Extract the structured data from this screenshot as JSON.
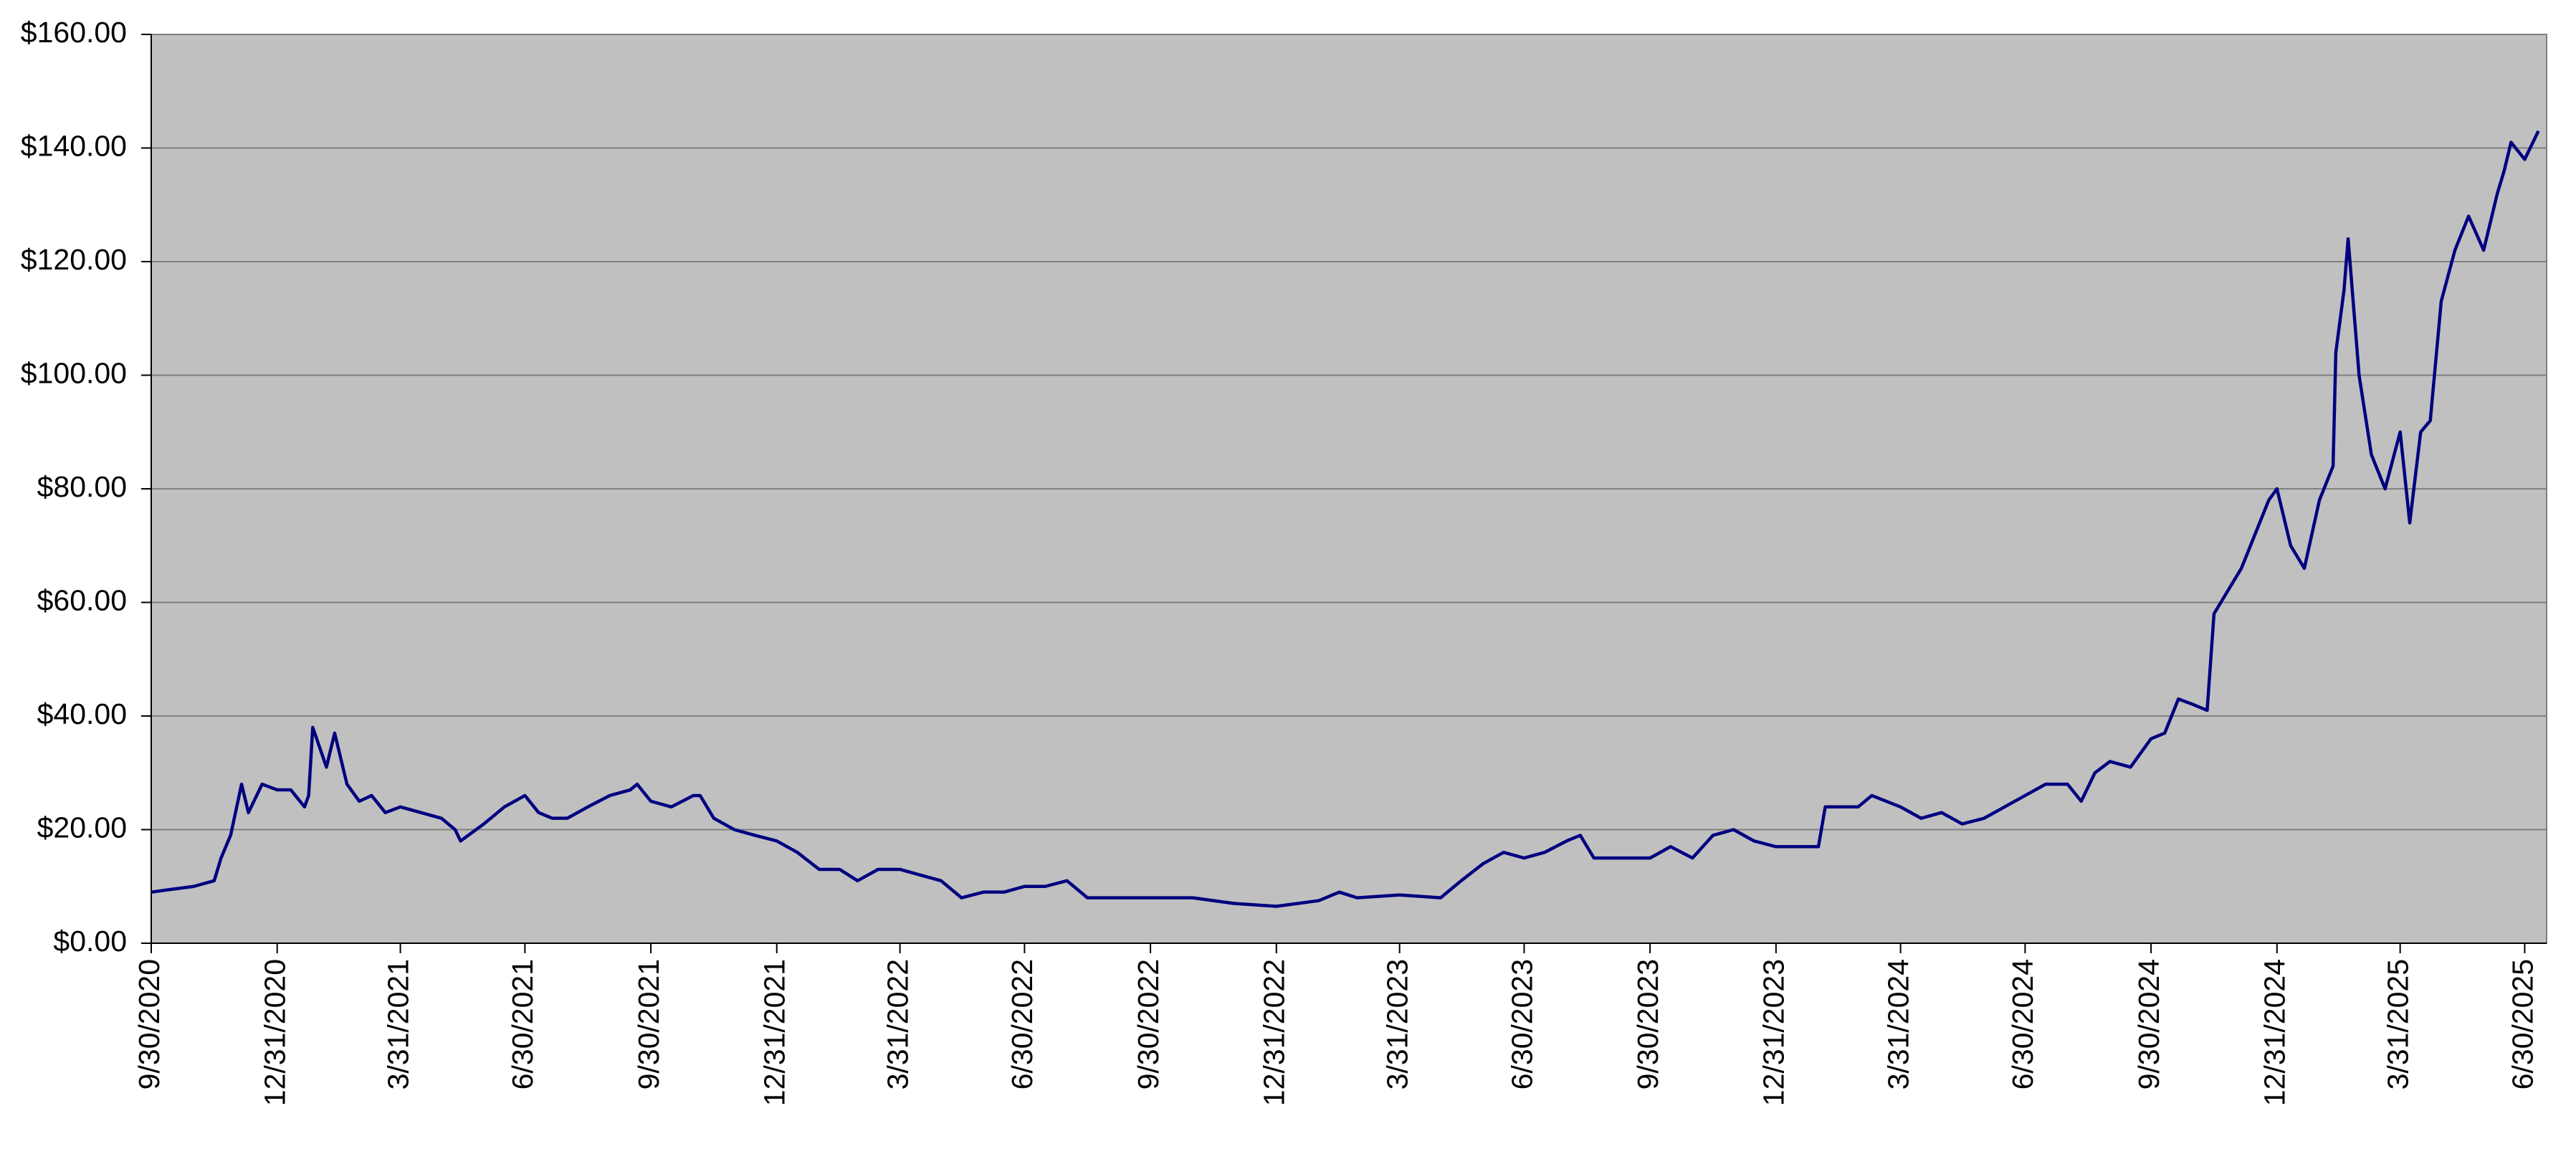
{
  "chart_data": {
    "type": "line",
    "x": [
      "9/30/2020",
      "10/15/2020",
      "10/31/2020",
      "11/15/2020",
      "11/20/2020",
      "11/27/2020",
      "12/5/2020",
      "12/10/2020",
      "12/20/2020",
      "12/31/2020",
      "1/10/2021",
      "1/20/2021",
      "1/23/2021",
      "1/26/2021",
      "2/5/2021",
      "2/11/2021",
      "2/20/2021",
      "3/1/2021",
      "3/10/2021",
      "3/20/2021",
      "3/31/2021",
      "4/15/2021",
      "4/30/2021",
      "5/10/2021",
      "5/14/2021",
      "5/31/2021",
      "6/15/2021",
      "6/30/2021",
      "7/10/2021",
      "7/20/2021",
      "7/31/2021",
      "8/15/2021",
      "8/31/2021",
      "9/15/2021",
      "9/20/2021",
      "9/30/2021",
      "10/15/2021",
      "10/31/2021",
      "11/5/2021",
      "11/15/2021",
      "11/30/2021",
      "12/15/2021",
      "12/31/2021",
      "1/15/2022",
      "1/31/2022",
      "2/15/2022",
      "2/28/2022",
      "3/15/2022",
      "3/31/2022",
      "4/15/2022",
      "4/30/2022",
      "5/15/2022",
      "5/31/2022",
      "6/15/2022",
      "6/30/2022",
      "7/15/2022",
      "7/31/2022",
      "8/15/2022",
      "8/31/2022",
      "9/30/2022",
      "10/31/2022",
      "11/30/2022",
      "12/31/2022",
      "1/31/2023",
      "2/15/2023",
      "2/28/2023",
      "3/31/2023",
      "4/30/2023",
      "5/15/2023",
      "5/31/2023",
      "6/15/2023",
      "6/30/2023",
      "7/15/2023",
      "7/31/2023",
      "8/10/2023",
      "8/20/2023",
      "8/31/2023",
      "9/15/2023",
      "9/30/2023",
      "10/15/2023",
      "10/31/2023",
      "11/15/2023",
      "11/30/2023",
      "12/15/2023",
      "12/31/2023",
      "1/31/2024",
      "2/5/2024",
      "2/15/2024",
      "2/29/2024",
      "3/10/2024",
      "3/31/2024",
      "4/15/2024",
      "4/30/2024",
      "5/15/2024",
      "5/31/2024",
      "6/15/2024",
      "6/30/2024",
      "7/15/2024",
      "7/31/2024",
      "8/10/2024",
      "8/20/2024",
      "8/31/2024",
      "9/15/2024",
      "9/30/2024",
      "10/10/2024",
      "10/20/2024",
      "10/31/2024",
      "11/10/2024",
      "11/15/2024",
      "11/25/2024",
      "12/5/2024",
      "12/15/2024",
      "12/25/2024",
      "12/31/2024",
      "1/10/2025",
      "1/20/2025",
      "1/31/2025",
      "2/10/2025",
      "2/12/2025",
      "2/18/2025",
      "2/21/2025",
      "3/1/2025",
      "3/10/2025",
      "3/20/2025",
      "3/31/2025",
      "4/7/2025",
      "4/15/2025",
      "4/22/2025",
      "4/30/2025",
      "5/10/2025",
      "5/20/2025",
      "5/31/2025",
      "6/10/2025",
      "6/15/2025",
      "6/20/2025",
      "6/30/2025",
      "7/10/2025"
    ],
    "series": [
      {
        "color": "#000080",
        "values": [
          9,
          9.5,
          10,
          11,
          15,
          19,
          28,
          23,
          28,
          27,
          27,
          24,
          26,
          38,
          31,
          37,
          28,
          25,
          26,
          23,
          24,
          23,
          22,
          20,
          18,
          21,
          24,
          26,
          23,
          22,
          22,
          24,
          26,
          27,
          28,
          25,
          24,
          26,
          26,
          22,
          20,
          19,
          18,
          16,
          13,
          13,
          11,
          13,
          13,
          12,
          11,
          8,
          9,
          9,
          10,
          10,
          11,
          8,
          8,
          8,
          8,
          7,
          6.5,
          7.5,
          9,
          8,
          8.5,
          8,
          11,
          14,
          16,
          15,
          16,
          18,
          19,
          15,
          15,
          15,
          15,
          17,
          15,
          19,
          20,
          18,
          17,
          17,
          24,
          24,
          24,
          26,
          24,
          22,
          23,
          21,
          22,
          24,
          26,
          28,
          28,
          25,
          30,
          32,
          31,
          36,
          37,
          43,
          42,
          41,
          58,
          62,
          66,
          72,
          78,
          80,
          70,
          66,
          78,
          84,
          104,
          115,
          124,
          100,
          86,
          80,
          90,
          74,
          90,
          92,
          113,
          122,
          128,
          122,
          132,
          136,
          141,
          138,
          143
        ]
      }
    ],
    "xlim": [
      "9/30/2020",
      "7/16/2025"
    ],
    "xticks": [
      "9/30/2020",
      "12/31/2020",
      "3/31/2021",
      "6/30/2021",
      "9/30/2021",
      "12/31/2021",
      "3/31/2022",
      "6/30/2022",
      "9/30/2022",
      "12/31/2022",
      "3/31/2023",
      "6/30/2023",
      "9/30/2023",
      "12/31/2023",
      "3/31/2024",
      "6/30/2024",
      "9/30/2024",
      "12/31/2024",
      "3/31/2025",
      "6/30/2025"
    ],
    "ylim": [
      0,
      160
    ],
    "yticks": [
      {
        "value": 0,
        "label": "$0.00"
      },
      {
        "value": 20,
        "label": "$20.00"
      },
      {
        "value": 40,
        "label": "$40.00"
      },
      {
        "value": 60,
        "label": "$60.00"
      },
      {
        "value": 80,
        "label": "$80.00"
      },
      {
        "value": 100,
        "label": "$100.00"
      },
      {
        "value": 120,
        "label": "$120.00"
      },
      {
        "value": 140,
        "label": "$140.00"
      },
      {
        "value": 160,
        "label": "$160.00"
      }
    ],
    "grid": true
  }
}
